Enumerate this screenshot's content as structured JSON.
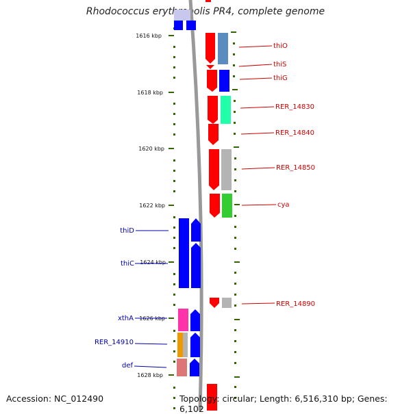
{
  "title": "Rhodococcus erythropolis PR4, complete genome",
  "footer": {
    "accession": "Accession: NC_012490",
    "summary": "Topology: circular; Length: 6,516,310 bp; Genes: 6,102"
  },
  "ticks": [
    "1616 kbp",
    "1618 kbp",
    "1620 kbp",
    "1622 kbp",
    "1624 kbp",
    "1626 kbp",
    "1628 kbp"
  ],
  "gene_labels_forward": [
    "thiO",
    "thiS",
    "thiG",
    "RER_14830",
    "RER_14840",
    "RER_14850",
    "cya",
    "RER_14890"
  ],
  "gene_labels_reverse": [
    "thiD",
    "thiC",
    "xthA",
    "RER_14910",
    "def"
  ],
  "colors": {
    "forward": "#ff0000",
    "reverse": "#0000ff",
    "forward_label": "#cc0000",
    "reverse_label": "#0000aa",
    "backbone": "#999999",
    "tick": "#336600",
    "thiO_cog": "#5b8cbf",
    "RER_14830_cog": "#22ffaa",
    "unknown_cog": "#b4b4b4",
    "cya_cog": "#33cc33",
    "xthA_cog": "#ff33aa",
    "RER_14910_cog": "#ee9900",
    "def_cog": "#dd7777"
  }
}
